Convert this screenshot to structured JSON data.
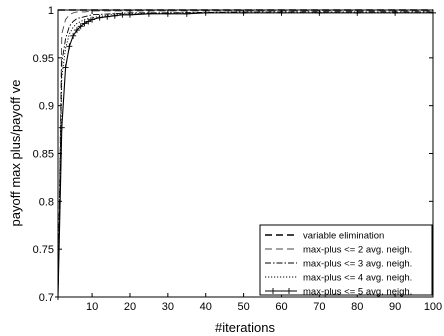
{
  "chart_data": {
    "type": "line",
    "xlabel": "#iterations",
    "ylabel": "payoff max plus/payoff ve",
    "xlim": [
      1,
      100
    ],
    "ylim": [
      0.7,
      1.0
    ],
    "xticks": [
      10,
      20,
      30,
      40,
      50,
      60,
      70,
      80,
      90,
      100
    ],
    "xtick_labels": [
      "10",
      "20",
      "30",
      "40",
      "50",
      "60",
      "70",
      "80",
      "90",
      "100"
    ],
    "yticks": [
      0.7,
      0.75,
      0.8,
      0.85,
      0.9,
      0.95,
      1.0
    ],
    "ytick_labels": [
      "0.7",
      "0.75",
      "0.8",
      "0.85",
      "0.9",
      "0.95",
      "1"
    ],
    "grid": false,
    "legend_position": "bottom-right",
    "series": [
      {
        "name": "variable elimination",
        "x": [
          1,
          100
        ],
        "values": [
          1.0,
          1.0
        ]
      },
      {
        "name": "max-plus <= 2 avg. neigh.",
        "x": [
          1,
          2,
          3,
          4,
          5,
          6,
          8,
          10,
          15,
          20,
          30,
          50,
          100
        ],
        "values": [
          0.7,
          0.975,
          0.99,
          0.995,
          0.997,
          0.998,
          0.998,
          0.999,
          0.999,
          0.999,
          0.999,
          0.999,
          0.999
        ]
      },
      {
        "name": "max-plus <= 3 avg. neigh.",
        "x": [
          1,
          2,
          3,
          4,
          5,
          6,
          8,
          10,
          15,
          20,
          30,
          50,
          100
        ],
        "values": [
          0.7,
          0.945,
          0.97,
          0.983,
          0.988,
          0.991,
          0.993,
          0.995,
          0.996,
          0.997,
          0.997,
          0.998,
          0.998
        ]
      },
      {
        "name": "max-plus <= 4 avg. neigh.",
        "x": [
          1,
          2,
          3,
          4,
          5,
          6,
          8,
          10,
          15,
          20,
          30,
          50,
          100
        ],
        "values": [
          0.7,
          0.93,
          0.96,
          0.975,
          0.982,
          0.986,
          0.99,
          0.992,
          0.995,
          0.996,
          0.997,
          0.997,
          0.997
        ]
      },
      {
        "name": "max-plus <= 5 avg. neigh.",
        "x": [
          1,
          2,
          3,
          4,
          5,
          6,
          7,
          8,
          9,
          10,
          12,
          14,
          16,
          18,
          20,
          25,
          30,
          35,
          40,
          50,
          60,
          70,
          80,
          90,
          100
        ],
        "values": [
          0.7,
          0.877,
          0.94,
          0.962,
          0.973,
          0.979,
          0.983,
          0.986,
          0.988,
          0.99,
          0.992,
          0.993,
          0.994,
          0.995,
          0.995,
          0.996,
          0.996,
          0.996,
          0.997,
          0.997,
          0.997,
          0.997,
          0.997,
          0.997,
          0.997
        ]
      }
    ]
  }
}
